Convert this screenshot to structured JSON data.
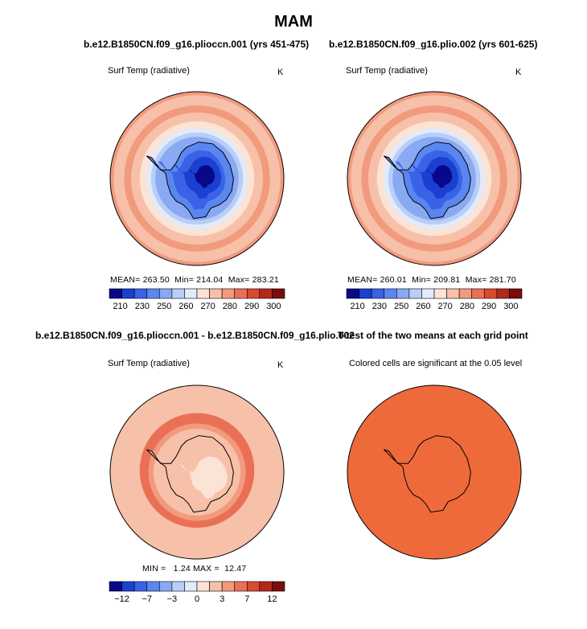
{
  "figure": {
    "title": "MAM"
  },
  "colors": {
    "abs_scale": [
      "#08088a",
      "#1a3fd1",
      "#3a62e6",
      "#5a86f0",
      "#89a9f3",
      "#b9cdf7",
      "#e0ebfb",
      "#fbe3d6",
      "#f7c0a8",
      "#f29a7e",
      "#ea7055",
      "#d94a2f",
      "#b52718",
      "#7a0d0d"
    ],
    "diff_scale": [
      "#08088a",
      "#1a3fd1",
      "#3a62e6",
      "#5a86f0",
      "#89a9f3",
      "#b9cdf7",
      "#e0ebfb",
      "#fbe3d6",
      "#f7c0a8",
      "#f29a7e",
      "#ea7055",
      "#d94a2f",
      "#b52718",
      "#7a0d0d"
    ],
    "land_outline": "#000000",
    "significance_fill": "#ee6a3b"
  },
  "chart_data": [
    {
      "type": "heatmap",
      "projection": "south-polar-stereographic",
      "title": "b.e12.B1850CN.f09_g16.plioccn.001 (yrs 451-475)",
      "variable_label": "Surf Temp (radiative)",
      "units": "K",
      "mean_label": "MEAN=",
      "mean": "263.50",
      "min_label": "Min=",
      "min": "214.04",
      "max_label": "Max=",
      "max": "283.21",
      "colorbar_ticks": [
        "210",
        "230",
        "250",
        "260",
        "270",
        "280",
        "290",
        "300"
      ]
    },
    {
      "type": "heatmap",
      "projection": "south-polar-stereographic",
      "title": "b.e12.B1850CN.f09_g16.plio.002 (yrs 601-625)",
      "variable_label": "Surf Temp (radiative)",
      "units": "K",
      "mean_label": "MEAN=",
      "mean": "260.01",
      "min_label": "Min=",
      "min": "209.81",
      "max_label": "Max=",
      "max": "281.70",
      "colorbar_ticks": [
        "210",
        "230",
        "250",
        "260",
        "270",
        "280",
        "290",
        "300"
      ]
    },
    {
      "type": "heatmap",
      "projection": "south-polar-stereographic",
      "title": "b.e12.B1850CN.f09_g16.plioccn.001 - b.e12.B1850CN.f09_g16.plio.002",
      "variable_label": "Surf Temp (radiative)",
      "units": "K",
      "min_label": "MIN =",
      "min": "1.24",
      "max_label": "MAX =",
      "max": "12.47",
      "colorbar_ticks": [
        "−12",
        "−7",
        "−3",
        "0",
        "3",
        "7",
        "12"
      ]
    },
    {
      "type": "heatmap",
      "projection": "south-polar-stereographic",
      "title": "T-test of the two means at each grid point",
      "variable_label": "Colored cells are significant at the 0.05 level"
    }
  ]
}
